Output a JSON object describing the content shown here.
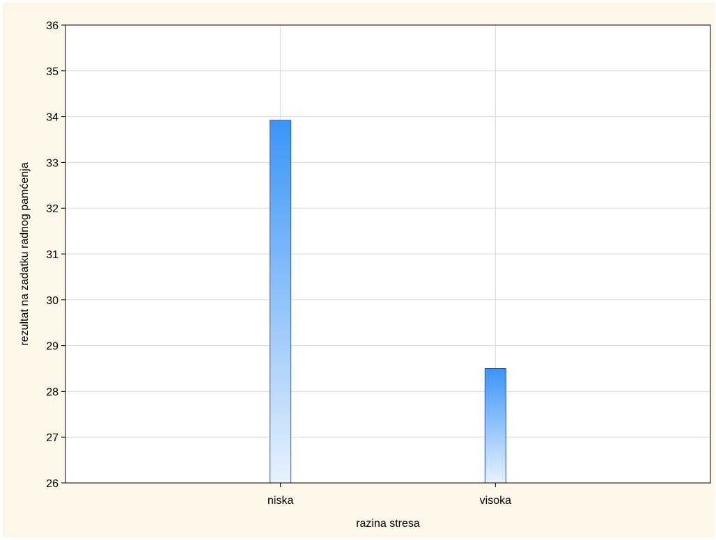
{
  "chart_data": {
    "type": "bar",
    "title": "",
    "xlabel": "razina stresa",
    "ylabel": "rezultat na zadatku radnog pamćenja",
    "categories": [
      "niska",
      "visoka"
    ],
    "values": [
      33.92,
      28.5
    ],
    "ylim": [
      26,
      36
    ],
    "yticks": [
      26,
      27,
      28,
      29,
      30,
      31,
      32,
      33,
      34,
      35,
      36
    ],
    "grid": true,
    "legend": "none"
  },
  "colors": {
    "background": "#fdf7ea",
    "plot_background": "#ffffff",
    "grid": "#d9d9d9",
    "bar_top": "#3a95f7",
    "bar_bottom": "#e8f2fd",
    "bar_border": "#2c4fb0"
  }
}
